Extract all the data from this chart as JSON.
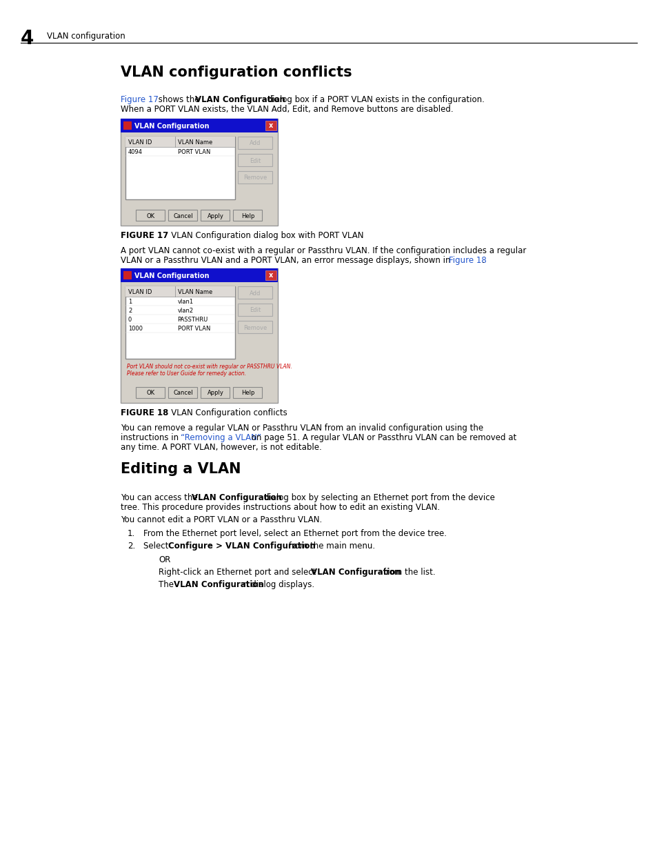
{
  "bg_color": "#ffffff",
  "page_header_number": "4",
  "page_header_text": "VLAN configuration",
  "section1_title": "VLAN configuration conflicts",
  "fig17_dialog": {
    "title": "VLAN Configuration",
    "columns": [
      "VLAN ID",
      "VLAN Name"
    ],
    "rows": [
      [
        "4094",
        "PORT VLAN"
      ]
    ],
    "buttons_right": [
      "Add",
      "Edit",
      "Remove"
    ],
    "buttons_bottom": [
      "OK",
      "Cancel",
      "Apply",
      "Help"
    ],
    "error_text": null,
    "buttons_disabled": true
  },
  "fig18_dialog": {
    "title": "VLAN Configuration",
    "columns": [
      "VLAN ID",
      "VLAN Name"
    ],
    "rows": [
      [
        "1",
        "vlan1"
      ],
      [
        "2",
        "vlan2"
      ],
      [
        "0",
        "PASSTHRU"
      ],
      [
        "1000",
        "PORT VLAN"
      ]
    ],
    "buttons_right": [
      "Add",
      "Edit",
      "Remove"
    ],
    "buttons_bottom": [
      "OK",
      "Cancel",
      "Apply",
      "Help"
    ],
    "error_text": "Port VLAN should not co-exist with regular or PASSTHRU VLAN.\nPlease refer to User Guide for remedy action.",
    "buttons_disabled": true
  },
  "section2_title": "Editing a VLAN"
}
